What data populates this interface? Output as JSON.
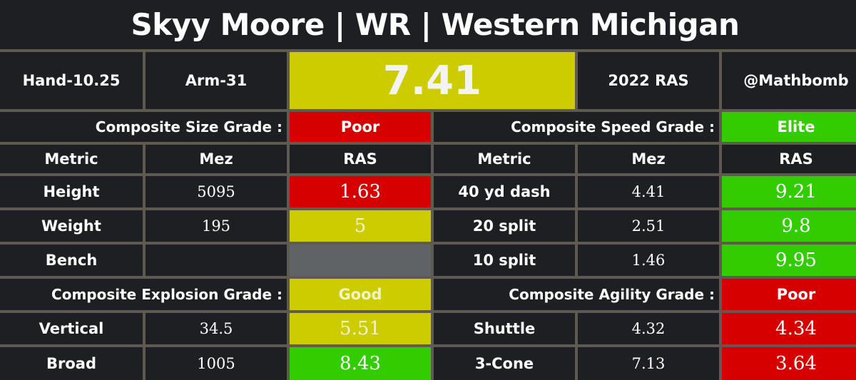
{
  "title": "Skyy Moore | WR | Western Michigan",
  "header": {
    "hand": "Hand-10.25",
    "arm": "Arm-31",
    "ras_score": "7.41",
    "year_label": "2022 RAS",
    "handle": "@Mathbomb"
  },
  "size": {
    "label": "Composite Size Grade :",
    "grade": "Poor"
  },
  "speed": {
    "label": "Composite Speed Grade :",
    "grade": "Elite"
  },
  "columns": {
    "metric": "Metric",
    "mez": "Mez",
    "ras": "RAS"
  },
  "size_rows": [
    {
      "metric": "Height",
      "mez": "5095",
      "ras": "1.63"
    },
    {
      "metric": "Weight",
      "mez": "195",
      "ras": "5"
    },
    {
      "metric": "Bench",
      "mez": "",
      "ras": ""
    }
  ],
  "speed_rows": [
    {
      "metric": "40 yd dash",
      "mez": "4.41",
      "ras": "9.21"
    },
    {
      "metric": "20 split",
      "mez": "2.51",
      "ras": "9.8"
    },
    {
      "metric": "10 split",
      "mez": "1.46",
      "ras": "9.95"
    }
  ],
  "explosion": {
    "label": "Composite Explosion Grade :",
    "grade": "Good"
  },
  "agility": {
    "label": "Composite Agility Grade :",
    "grade": "Poor"
  },
  "explosion_rows": [
    {
      "metric": "Vertical",
      "mez": "34.5",
      "ras": "5.51"
    },
    {
      "metric": "Broad",
      "mez": "1005",
      "ras": "8.43"
    }
  ],
  "agility_rows": [
    {
      "metric": "Shuttle",
      "mez": "4.32",
      "ras": "4.34"
    },
    {
      "metric": "3-Cone",
      "mez": "7.13",
      "ras": "3.64"
    }
  ],
  "colors": {
    "background": "#1e1f22",
    "border": "#5e5a52",
    "red": "#d60000",
    "yellow": "#cccc00",
    "green": "#33cc00",
    "gray": "#5f6366"
  }
}
